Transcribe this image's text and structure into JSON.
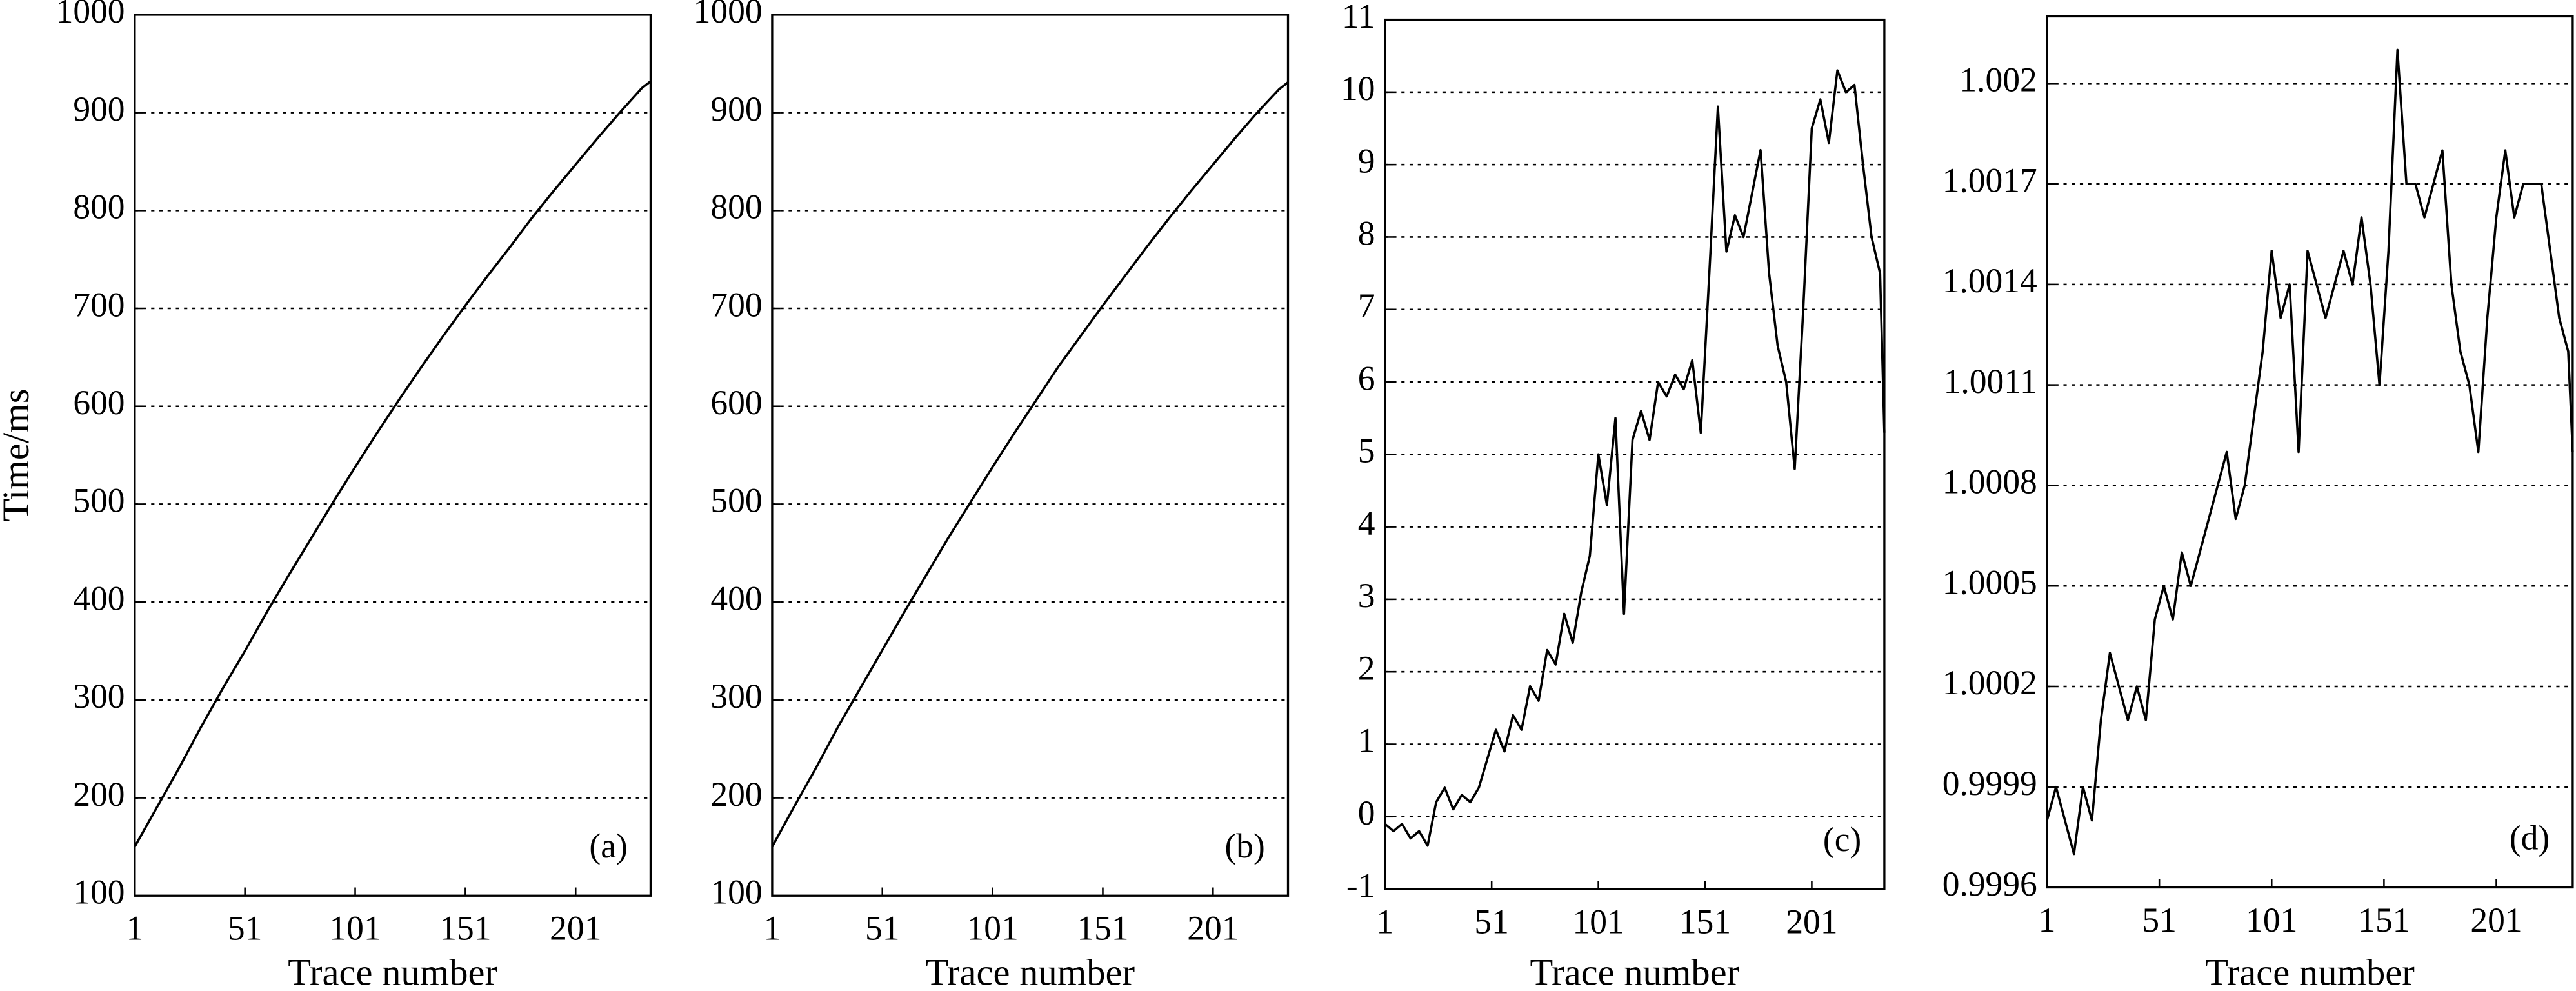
{
  "chart_data": [
    {
      "type": "line",
      "ylabel": "Time/ms",
      "xlabel": "Trace number",
      "annotation": "(a)",
      "color": "#000000",
      "grid": true,
      "xlim": [
        1,
        235
      ],
      "xticks": [
        1,
        51,
        101,
        151,
        201
      ],
      "ylim": [
        100,
        1000
      ],
      "yticks": [
        100,
        200,
        300,
        400,
        500,
        600,
        700,
        800,
        900,
        1000
      ],
      "x": [
        1,
        11,
        21,
        31,
        41,
        51,
        61,
        71,
        81,
        91,
        101,
        111,
        121,
        131,
        141,
        151,
        161,
        171,
        181,
        191,
        201,
        211,
        221,
        231,
        235
      ],
      "values": [
        150,
        190,
        230,
        272,
        312,
        350,
        390,
        428,
        465,
        502,
        538,
        573,
        607,
        640,
        672,
        703,
        733,
        762,
        792,
        820,
        847,
        874,
        900,
        925,
        932
      ]
    },
    {
      "type": "line",
      "xlabel": "Trace number",
      "annotation": "(b)",
      "color": "#000000",
      "grid": true,
      "xlim": [
        1,
        235
      ],
      "xticks": [
        1,
        51,
        101,
        151,
        201
      ],
      "ylim": [
        100,
        1000
      ],
      "yticks": [
        100,
        200,
        300,
        400,
        500,
        600,
        700,
        800,
        900,
        1000
      ],
      "x": [
        1,
        11,
        21,
        31,
        41,
        51,
        61,
        71,
        81,
        91,
        101,
        111,
        121,
        131,
        141,
        151,
        161,
        171,
        181,
        191,
        201,
        211,
        221,
        231,
        235
      ],
      "values": [
        150,
        191,
        231,
        273,
        312,
        351,
        390,
        428,
        466,
        502,
        538,
        573,
        607,
        641,
        672,
        703,
        733,
        763,
        792,
        820,
        847,
        874,
        900,
        924,
        931
      ]
    },
    {
      "type": "line",
      "xlabel": "Trace number",
      "annotation": "(c)",
      "color": "#000000",
      "grid": true,
      "xlim": [
        1,
        235
      ],
      "xticks": [
        1,
        51,
        101,
        151,
        201
      ],
      "ylim": [
        -1,
        11
      ],
      "yticks": [
        -1,
        0,
        1,
        2,
        3,
        4,
        5,
        6,
        7,
        8,
        9,
        10,
        11
      ],
      "x": [
        1,
        5,
        9,
        13,
        17,
        21,
        25,
        29,
        33,
        37,
        41,
        45,
        49,
        53,
        57,
        61,
        65,
        69,
        73,
        77,
        81,
        85,
        89,
        93,
        97,
        101,
        105,
        109,
        113,
        117,
        121,
        125,
        129,
        133,
        137,
        141,
        145,
        149,
        153,
        157,
        161,
        165,
        169,
        173,
        177,
        181,
        185,
        189,
        193,
        197,
        201,
        205,
        209,
        213,
        217,
        221,
        225,
        229,
        233,
        235
      ],
      "values": [
        -0.1,
        -0.2,
        -0.1,
        -0.3,
        -0.2,
        -0.4,
        0.2,
        0.4,
        0.1,
        0.3,
        0.2,
        0.4,
        0.8,
        1.2,
        0.9,
        1.4,
        1.2,
        1.8,
        1.6,
        2.3,
        2.1,
        2.8,
        2.4,
        3.1,
        3.6,
        5.0,
        4.3,
        5.5,
        2.8,
        5.2,
        5.6,
        5.2,
        6.0,
        5.8,
        6.1,
        5.9,
        6.3,
        5.3,
        7.5,
        9.8,
        7.8,
        8.3,
        8.0,
        8.6,
        9.2,
        7.5,
        6.5,
        6.0,
        4.8,
        7.0,
        9.5,
        9.9,
        9.3,
        10.3,
        10.0,
        10.1,
        9.0,
        8.0,
        7.5,
        5.3
      ]
    },
    {
      "type": "line",
      "xlabel": "Trace number",
      "annotation": "(d)",
      "color": "#000000",
      "grid": true,
      "xlim": [
        1,
        235
      ],
      "xticks": [
        1,
        51,
        101,
        151,
        201
      ],
      "ylim": [
        0.9996,
        1.0022
      ],
      "yticks": [
        0.9996,
        0.9999,
        1.0002,
        1.0005,
        1.0008,
        1.0011,
        1.0014,
        1.0017,
        1.002
      ],
      "x": [
        1,
        5,
        9,
        13,
        17,
        21,
        25,
        29,
        33,
        37,
        41,
        45,
        49,
        53,
        57,
        61,
        65,
        69,
        73,
        77,
        81,
        85,
        89,
        93,
        97,
        101,
        105,
        109,
        113,
        117,
        121,
        125,
        129,
        133,
        137,
        141,
        145,
        149,
        153,
        157,
        161,
        165,
        169,
        173,
        177,
        181,
        185,
        189,
        193,
        197,
        201,
        205,
        209,
        213,
        217,
        221,
        225,
        229,
        233,
        235
      ],
      "values": [
        0.9998,
        0.9999,
        0.9998,
        0.9997,
        0.9999,
        0.9998,
        1.0001,
        1.0003,
        1.0002,
        1.0001,
        1.0002,
        1.0001,
        1.0004,
        1.0005,
        1.0004,
        1.0006,
        1.0005,
        1.0006,
        1.0007,
        1.0008,
        1.0009,
        1.0007,
        1.0008,
        1.001,
        1.0012,
        1.0015,
        1.0013,
        1.0014,
        1.0009,
        1.0015,
        1.0014,
        1.0013,
        1.0014,
        1.0015,
        1.0014,
        1.0016,
        1.0014,
        1.0011,
        1.0015,
        1.0021,
        1.0017,
        1.0017,
        1.0016,
        1.0017,
        1.0018,
        1.0014,
        1.0012,
        1.0011,
        1.0009,
        1.0013,
        1.0016,
        1.0018,
        1.0016,
        1.0017,
        1.0017,
        1.0017,
        1.0015,
        1.0013,
        1.0012,
        1.0009
      ]
    }
  ]
}
